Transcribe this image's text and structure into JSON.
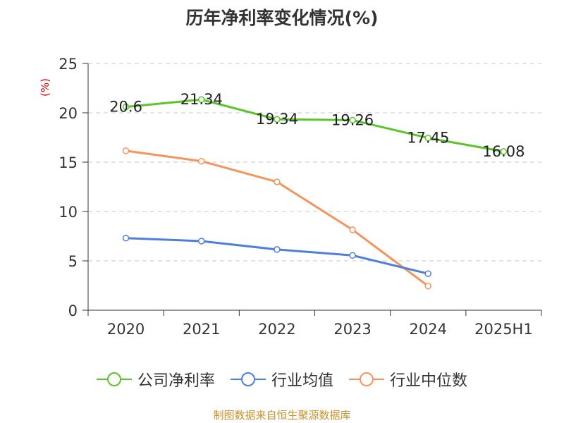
{
  "chart_data": {
    "type": "line",
    "title": "历年净利率变化情况(%)",
    "unit_label": "(%)",
    "categories": [
      "2020",
      "2021",
      "2022",
      "2023",
      "2024",
      "2025H1"
    ],
    "ylim": [
      0,
      25
    ],
    "yticks": [
      0,
      5,
      10,
      15,
      20,
      25
    ],
    "grid": true,
    "legend_position": "bottom",
    "series": [
      {
        "name": "公司净利率",
        "color": "#5bc42b",
        "values": [
          20.6,
          21.34,
          19.34,
          19.26,
          17.45,
          16.08
        ],
        "data_labels": [
          "20.6",
          "21.34",
          "19.34",
          "19.26",
          "17.45",
          "16.08"
        ]
      },
      {
        "name": "行业均值",
        "color": "#4e7fdc",
        "values": [
          7.3,
          7.0,
          6.15,
          5.55,
          3.7,
          null
        ]
      },
      {
        "name": "行业中位数",
        "color": "#f5935d",
        "values": [
          16.15,
          15.1,
          13.0,
          8.15,
          2.45,
          null
        ]
      }
    ],
    "source": "制图数据来自恒生聚源数据库"
  }
}
